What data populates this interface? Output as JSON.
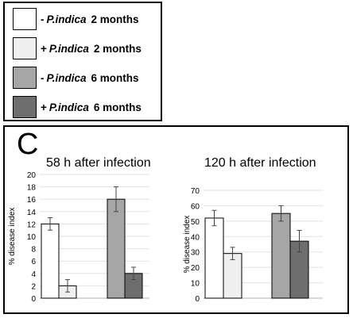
{
  "legend": {
    "items": [
      {
        "sign": "-",
        "species": "P.indica",
        "duration": "2 months",
        "color": "#ffffff"
      },
      {
        "sign": "+",
        "species": "P.indica",
        "duration": "2 months",
        "color": "#f0f0f0"
      },
      {
        "sign": "-",
        "species": "P.indica",
        "duration": "6 months",
        "color": "#a6a6a6"
      },
      {
        "sign": "+",
        "species": "P.indica",
        "duration": "6 months",
        "color": "#6e6e6e"
      }
    ]
  },
  "panel": {
    "letter": "C"
  },
  "chart_data": [
    {
      "type": "bar",
      "title": "58 h after infection",
      "ylabel": "% disease index",
      "ylim": [
        0,
        20
      ],
      "yticks": [
        0,
        2,
        4,
        6,
        8,
        10,
        12,
        14,
        16,
        18,
        20
      ],
      "grid": true,
      "values": [
        12,
        2,
        16,
        4
      ],
      "errors": [
        1,
        1,
        2,
        1
      ],
      "colors": [
        "#ffffff",
        "#f0f0f0",
        "#a6a6a6",
        "#6e6e6e"
      ]
    },
    {
      "type": "bar",
      "title": "120 h after infection",
      "ylabel": "% disease index",
      "ylim": [
        0,
        70
      ],
      "yticks": [
        0,
        10,
        20,
        30,
        40,
        50,
        60,
        70
      ],
      "grid": true,
      "values": [
        52,
        29,
        55,
        37
      ],
      "errors": [
        5,
        4,
        5,
        7
      ],
      "colors": [
        "#ffffff",
        "#f0f0f0",
        "#a6a6a6",
        "#6e6e6e"
      ]
    }
  ]
}
